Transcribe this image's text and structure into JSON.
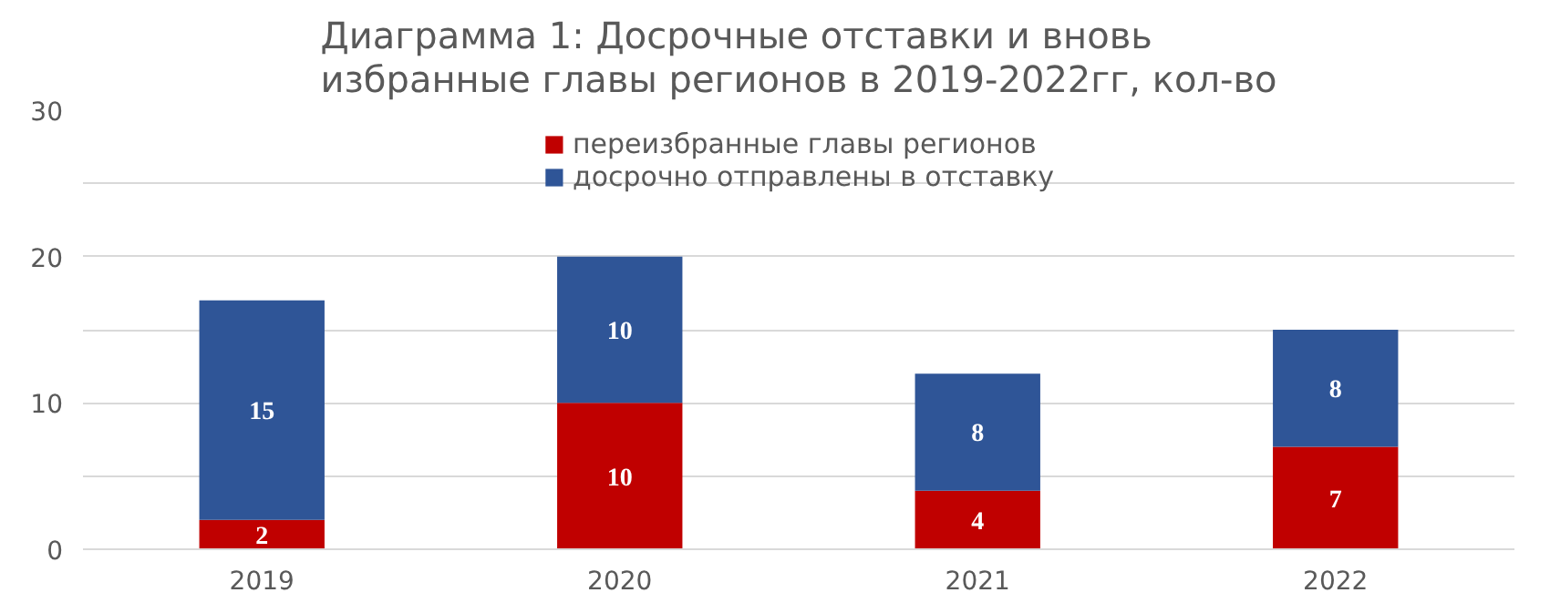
{
  "chart_data": {
    "type": "bar",
    "title": "Диаграмма 1: Досрочные отставки и вновь\nизбранные главы регионов в 2019-2022гг, кол-во",
    "categories": [
      "2019",
      "2020",
      "2021",
      "2022"
    ],
    "series": [
      {
        "name": "переизбранные главы регионов",
        "color": "#c00000",
        "values": [
          2,
          10,
          4,
          7
        ]
      },
      {
        "name": "досрочно отправлены в отставку",
        "color": "#2f5597",
        "values": [
          15,
          10,
          8,
          8
        ]
      }
    ],
    "stacked": true,
    "data_labels": true,
    "ylim": [
      0,
      30
    ],
    "yticks": [
      0,
      {
        "value": 5,
        "label": null
      },
      10,
      {
        "value": 15,
        "label": null
      },
      20,
      {
        "value": 25,
        "label": null
      },
      30
    ],
    "grid": "y",
    "legend": "top"
  }
}
